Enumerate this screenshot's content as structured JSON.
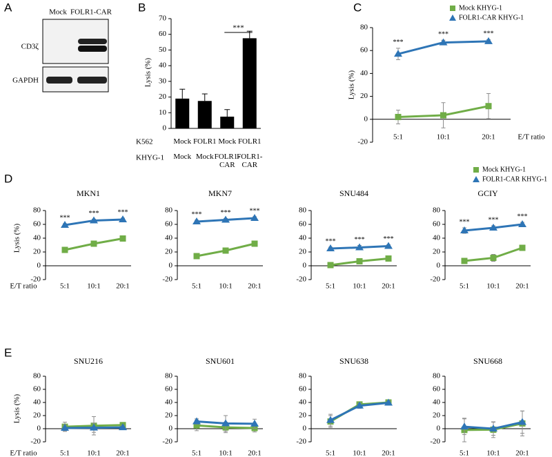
{
  "panel_labels": [
    "A",
    "B",
    "C",
    "D",
    "E"
  ],
  "blot": {
    "columns": [
      "Mock",
      "FOLR1-CAR"
    ],
    "rows": [
      "CD3ζ",
      "GAPDH"
    ]
  },
  "chart_data": [
    {
      "type": "bar",
      "ylabel": "Lysis (%)",
      "ylim": [
        0,
        70
      ],
      "yticks": [
        0,
        10,
        20,
        30,
        40,
        50,
        60,
        70
      ],
      "values": [
        19,
        17.5,
        7.5,
        57.5
      ],
      "errors": [
        6,
        4.5,
        4.5,
        4.5
      ],
      "color": "#000000",
      "category_rows": [
        {
          "name": "K562",
          "labels": [
            "Mock",
            "FOLR1",
            "Mock",
            "FOLR1"
          ]
        },
        {
          "name": "KHYG-1",
          "labels": [
            "Mock",
            "Mock",
            "FOLR1-CAR",
            "FOLR1-CAR"
          ]
        }
      ],
      "annotations": [
        "***"
      ]
    },
    {
      "type": "line",
      "ylabel": "Lysis (%)",
      "xlabel": "E/T ratio",
      "categories": [
        "5:1",
        "10:1",
        "20:1"
      ],
      "ylim": [
        -20,
        80
      ],
      "yticks": [
        -20,
        0,
        20,
        40,
        60,
        80
      ],
      "legend": "top-right",
      "series": [
        {
          "name": "Mock KHYG-1",
          "color": "#70ad47",
          "marker": "square",
          "values": [
            2,
            3.5,
            11.5
          ],
          "errors": [
            6,
            11,
            11
          ]
        },
        {
          "name": "FOLR1-CAR KHYG-1",
          "color": "#2e75b6",
          "marker": "triangle",
          "values": [
            57,
            67,
            68
          ],
          "errors": [
            5,
            2,
            1.5
          ]
        }
      ],
      "annotations": [
        "***",
        "***",
        "***"
      ]
    },
    {
      "type": "line",
      "title": "MKN1",
      "ylabel": "Lysis (%)",
      "xlabel": "E/T ratio",
      "categories": [
        "5:1",
        "10:1",
        "20:1"
      ],
      "ylim": [
        -20,
        80
      ],
      "yticks": [
        -20,
        0,
        20,
        40,
        60,
        80
      ],
      "legend": "top-right",
      "series": [
        {
          "name": "Mock KHYG-1",
          "color": "#70ad47",
          "marker": "square",
          "values": [
            23,
            32,
            39.5
          ],
          "errors": [
            2,
            2,
            2
          ]
        },
        {
          "name": "FOLR1-CAR KHYG-1",
          "color": "#2e75b6",
          "marker": "triangle",
          "values": [
            59,
            65.5,
            67
          ],
          "errors": [
            2,
            2,
            2
          ]
        }
      ],
      "annotations": [
        "***",
        "***",
        "***"
      ]
    },
    {
      "type": "line",
      "title": "MKN7",
      "categories": [
        "5:1",
        "10:1",
        "20:1"
      ],
      "ylim": [
        -20,
        80
      ],
      "yticks": [
        -20,
        0,
        20,
        40,
        60,
        80
      ],
      "series": [
        {
          "color": "#70ad47",
          "marker": "square",
          "values": [
            14,
            22,
            32
          ],
          "errors": [
            2,
            3,
            2
          ]
        },
        {
          "color": "#2e75b6",
          "marker": "triangle",
          "values": [
            64,
            66.5,
            69
          ],
          "errors": [
            2,
            2,
            2
          ]
        }
      ],
      "annotations": [
        "***",
        "***",
        "***"
      ]
    },
    {
      "type": "line",
      "title": "SNU484",
      "categories": [
        "5:1",
        "10:1",
        "20:1"
      ],
      "ylim": [
        -20,
        80
      ],
      "yticks": [
        -20,
        0,
        20,
        40,
        60,
        80
      ],
      "series": [
        {
          "color": "#70ad47",
          "marker": "square",
          "values": [
            1,
            6.5,
            10.5
          ],
          "errors": [
            2,
            2,
            2
          ]
        },
        {
          "color": "#2e75b6",
          "marker": "triangle",
          "values": [
            25,
            26.5,
            28.5
          ],
          "errors": [
            2,
            3,
            2
          ]
        }
      ],
      "annotations": [
        "***",
        "***",
        "***"
      ]
    },
    {
      "type": "line",
      "title": "GCIY",
      "categories": [
        "5:1",
        "10:1",
        "20:1"
      ],
      "ylim": [
        -20,
        80
      ],
      "yticks": [
        -20,
        0,
        20,
        40,
        60,
        80
      ],
      "series": [
        {
          "color": "#70ad47",
          "marker": "square",
          "values": [
            7,
            11.5,
            26
          ],
          "errors": [
            2,
            5,
            2
          ]
        },
        {
          "color": "#2e75b6",
          "marker": "triangle",
          "values": [
            51,
            55,
            60
          ],
          "errors": [
            4,
            3,
            3
          ]
        }
      ],
      "annotations": [
        "***",
        "***",
        "***"
      ]
    },
    {
      "type": "line",
      "title": "SNU216",
      "ylabel": "Lysis (%)",
      "xlabel": "E/T ratio",
      "categories": [
        "5:1",
        "10:1",
        "20:1"
      ],
      "ylim": [
        -20,
        80
      ],
      "yticks": [
        -20,
        0,
        20,
        40,
        60,
        80
      ],
      "series": [
        {
          "color": "#70ad47",
          "marker": "square",
          "values": [
            3,
            4.5,
            5.5
          ],
          "errors": [
            7,
            14,
            4
          ]
        },
        {
          "color": "#2e75b6",
          "marker": "triangle",
          "values": [
            1,
            1.5,
            2
          ],
          "errors": [
            5,
            7,
            3
          ]
        }
      ]
    },
    {
      "type": "line",
      "title": "SNU601",
      "categories": [
        "5:1",
        "10:1",
        "20:1"
      ],
      "ylim": [
        -20,
        80
      ],
      "yticks": [
        -20,
        0,
        20,
        40,
        60,
        80
      ],
      "series": [
        {
          "color": "#70ad47",
          "marker": "square",
          "values": [
            5,
            2,
            1
          ],
          "errors": [
            8,
            8,
            6
          ]
        },
        {
          "color": "#2e75b6",
          "marker": "triangle",
          "values": [
            11,
            8,
            7.5
          ],
          "errors": [
            4,
            12,
            7
          ]
        }
      ]
    },
    {
      "type": "line",
      "title": "SNU638",
      "categories": [
        "5:1",
        "10:1",
        "20:1"
      ],
      "ylim": [
        -20,
        80
      ],
      "yticks": [
        -20,
        0,
        20,
        40,
        60,
        80
      ],
      "series": [
        {
          "color": "#70ad47",
          "marker": "square",
          "values": [
            11,
            37,
            40
          ],
          "errors": [
            9,
            4,
            3
          ]
        },
        {
          "color": "#2e75b6",
          "marker": "triangle",
          "values": [
            13,
            35,
            39.5
          ],
          "errors": [
            9,
            4,
            3
          ]
        }
      ]
    },
    {
      "type": "line",
      "title": "SNU668",
      "categories": [
        "5:1",
        "10:1",
        "20:1"
      ],
      "ylim": [
        -20,
        80
      ],
      "yticks": [
        -20,
        0,
        20,
        40,
        60,
        80
      ],
      "series": [
        {
          "color": "#70ad47",
          "marker": "square",
          "values": [
            -2,
            -1.5,
            8
          ],
          "errors": [
            18,
            12,
            19
          ]
        },
        {
          "color": "#2e75b6",
          "marker": "triangle",
          "values": [
            3,
            0,
            10
          ],
          "errors": [
            12,
            10,
            17
          ]
        }
      ]
    }
  ]
}
